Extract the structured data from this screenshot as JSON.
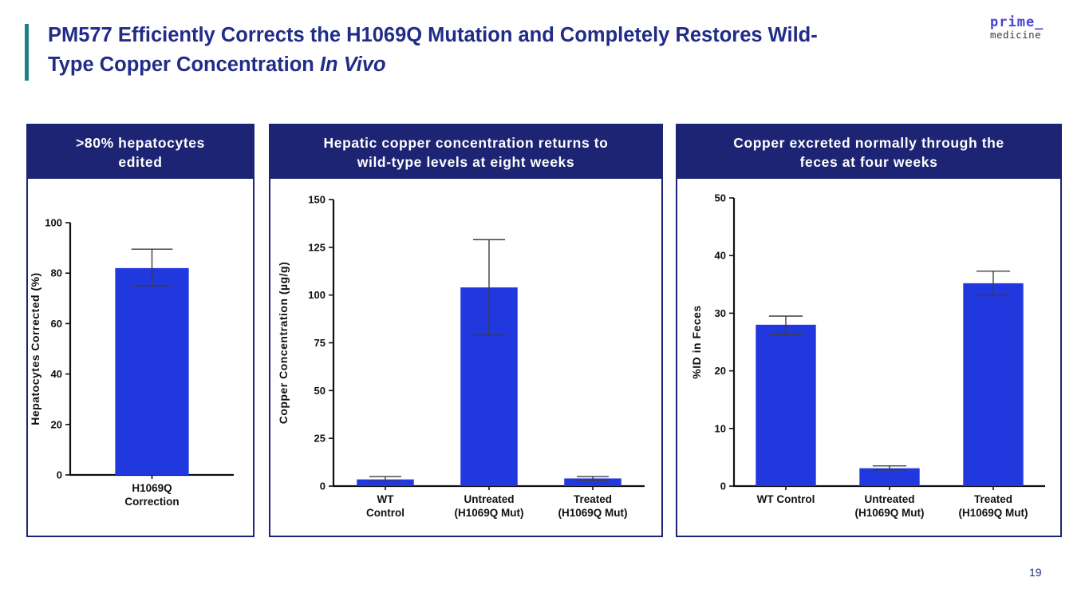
{
  "slide": {
    "title_text": "PM577 Efficiently Corrects the H1069Q Mutation and Completely Restores Wild-\nType Copper Concentration ",
    "title_italic": "In Vivo",
    "page_number": "19"
  },
  "logo": {
    "line1": "prime_",
    "line2": "medicine"
  },
  "colors": {
    "accent_teal": "#1b7f8a",
    "panel_navy": "#1d2473",
    "title_navy": "#212c87",
    "bar_blue": "#2138df",
    "logo_blue": "#4643d6"
  },
  "panels": [
    {
      "header": ">80% hepatocytes\nedited"
    },
    {
      "header": "Hepatic copper concentration returns to\nwild-type levels at eight weeks"
    },
    {
      "header": "Copper excreted normally through the\nfeces at four weeks"
    }
  ],
  "chart_data": [
    {
      "type": "bar",
      "title": ">80% hepatocytes edited",
      "xlabel": "",
      "ylabel": "Hepatocytes Corrected (%)",
      "ylim": [
        0,
        100
      ],
      "yticks": [
        0,
        20,
        40,
        60,
        80,
        100
      ],
      "categories": [
        "H1069Q\nCorrection"
      ],
      "values": [
        82
      ],
      "error_low": [
        75
      ],
      "error_high": [
        89.5
      ],
      "bar_color": "#2138df",
      "grid": false,
      "legend": "none"
    },
    {
      "type": "bar",
      "title": "Hepatic copper concentration returns to wild-type levels at eight weeks",
      "xlabel": "",
      "ylabel": "Copper Concentration (µg/g)",
      "ylim": [
        0,
        150
      ],
      "yticks": [
        0,
        25,
        50,
        75,
        100,
        125,
        150
      ],
      "categories": [
        "WT\nControl",
        "Untreated\n(H1069Q Mut)",
        "Treated\n(H1069Q Mut)"
      ],
      "values": [
        3.5,
        104,
        4
      ],
      "error_low": [
        2.5,
        79,
        3
      ],
      "error_high": [
        5,
        129,
        5
      ],
      "bar_color": "#2138df",
      "grid": false,
      "legend": "none"
    },
    {
      "type": "bar",
      "title": "Copper excreted normally through the feces at four weeks",
      "xlabel": "",
      "ylabel": "%ID in Feces",
      "ylim": [
        0,
        50
      ],
      "yticks": [
        0,
        10,
        20,
        30,
        40,
        50
      ],
      "categories": [
        "WT Control",
        "Untreated\n(H1069Q Mut)",
        "Treated\n(H1069Q Mut)"
      ],
      "values": [
        28,
        3.1,
        35.2
      ],
      "error_low": [
        26.3,
        2.8,
        33.1
      ],
      "error_high": [
        29.5,
        3.5,
        37.3
      ],
      "bar_color": "#2138df",
      "grid": false,
      "legend": "none"
    }
  ]
}
